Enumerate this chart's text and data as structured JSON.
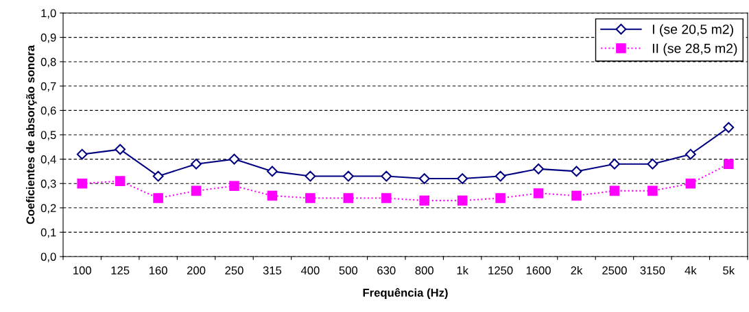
{
  "chart_data": {
    "type": "line",
    "xlabel": "Frequência (Hz)",
    "ylabel": "Coeficientes de absorção sonora",
    "categories": [
      "100",
      "125",
      "160",
      "200",
      "250",
      "315",
      "400",
      "500",
      "630",
      "800",
      "1k",
      "1250",
      "1600",
      "2k",
      "2500",
      "3150",
      "4k",
      "5k"
    ],
    "series": [
      {
        "name": "I (se 20,5 m2)",
        "color": "#000080",
        "marker": "diamond",
        "line_style": "solid",
        "values": [
          0.42,
          0.44,
          0.33,
          0.38,
          0.4,
          0.35,
          0.33,
          0.33,
          0.33,
          0.32,
          0.32,
          0.33,
          0.36,
          0.35,
          0.38,
          0.38,
          0.42,
          0.53
        ]
      },
      {
        "name": "II (se 28,5 m2)",
        "color": "#ff00ff",
        "marker": "square",
        "line_style": "dotted",
        "values": [
          0.3,
          0.31,
          0.24,
          0.27,
          0.29,
          0.25,
          0.24,
          0.24,
          0.24,
          0.23,
          0.23,
          0.24,
          0.26,
          0.25,
          0.27,
          0.27,
          0.3,
          0.38
        ]
      }
    ],
    "ylim": [
      0,
      1
    ],
    "yticks": [
      {
        "value": 0,
        "label": "0,0"
      },
      {
        "value": 0.1,
        "label": "0,1"
      },
      {
        "value": 0.2,
        "label": "0,2"
      },
      {
        "value": 0.3,
        "label": "0,3"
      },
      {
        "value": 0.4,
        "label": "0,4"
      },
      {
        "value": 0.5,
        "label": "0,5"
      },
      {
        "value": 0.6,
        "label": "0,6"
      },
      {
        "value": 0.7,
        "label": "0,7"
      },
      {
        "value": 0.8,
        "label": "0,8"
      },
      {
        "value": 0.9,
        "label": "0,9"
      },
      {
        "value": 1,
        "label": "1,0"
      }
    ],
    "grid": "y",
    "legend": "top right"
  }
}
